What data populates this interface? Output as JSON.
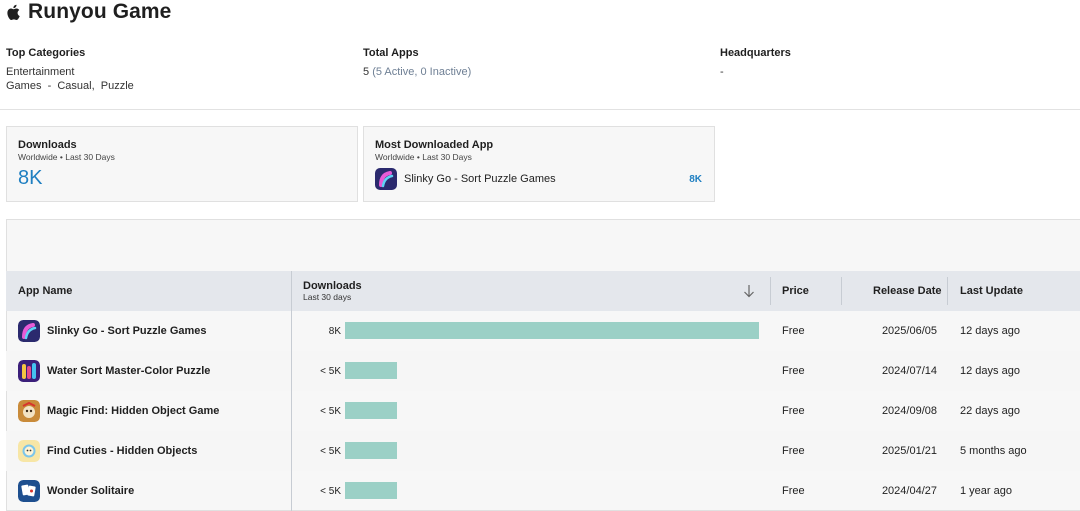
{
  "header": {
    "title": "Runyou Game",
    "platform_icon": "apple-icon"
  },
  "info": {
    "top_categories": {
      "label": "Top Categories",
      "line1": "Entertainment",
      "line2": "Games  -  Casual,  Puzzle"
    },
    "total_apps": {
      "label": "Total Apps",
      "count": "5",
      "detail": "(5 Active, 0 Inactive)"
    },
    "headquarters": {
      "label": "Headquarters",
      "value": "-"
    }
  },
  "cards": {
    "downloads": {
      "title": "Downloads",
      "subtitle": "Worldwide • Last 30 Days",
      "value": "8K"
    },
    "most_downloaded": {
      "title": "Most Downloaded App",
      "subtitle": "Worldwide • Last 30 Days",
      "app_name": "Slinky Go - Sort Puzzle Games",
      "value": "8K"
    }
  },
  "table": {
    "columns": {
      "app_name": "App Name",
      "downloads": "Downloads",
      "downloads_sub": "Last 30 days",
      "price": "Price",
      "release_date": "Release Date",
      "last_update": "Last Update"
    },
    "rows": [
      {
        "name": "Slinky Go - Sort Puzzle Games",
        "downloads": "8K",
        "share": 1.0,
        "price": "Free",
        "release": "2025/06/05",
        "updated": "12 days ago",
        "icon": "slinky-app-icon"
      },
      {
        "name": "Water Sort Master-Color Puzzle",
        "downloads": "< 5K",
        "share": 0.125,
        "price": "Free",
        "release": "2024/07/14",
        "updated": "12 days ago",
        "icon": "water-sort-app-icon"
      },
      {
        "name": "Magic Find: Hidden Object Game",
        "downloads": "< 5K",
        "share": 0.125,
        "price": "Free",
        "release": "2024/09/08",
        "updated": "22 days ago",
        "icon": "magic-find-app-icon"
      },
      {
        "name": "Find Cuties - Hidden Objects",
        "downloads": "< 5K",
        "share": 0.125,
        "price": "Free",
        "release": "2025/01/21",
        "updated": "5 months ago",
        "icon": "find-cuties-app-icon"
      },
      {
        "name": "Wonder Solitaire",
        "downloads": "< 5K",
        "share": 0.125,
        "price": "Free",
        "release": "2024/04/27",
        "updated": "1 year ago",
        "icon": "solitaire-app-icon"
      }
    ]
  },
  "colors": {
    "accent": "#1f7fc1",
    "bar": "#9bd0c6",
    "muted": "#6e7f94",
    "header_bg": "#e4e7ec"
  }
}
